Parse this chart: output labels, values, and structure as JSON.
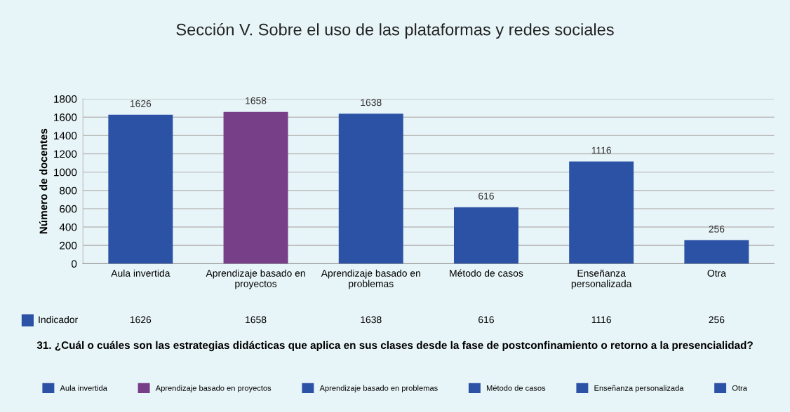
{
  "chart_data": {
    "type": "bar",
    "title": "Sección V. Sobre el uso de las plataformas y redes sociales",
    "ylabel": "Número de docentes",
    "categories": [
      "Aula invertida",
      "Aprendizaje basado en proyectos",
      "Aprendizaje basado en problemas",
      "Método de casos",
      "Enseñanza personalizada",
      "Otra"
    ],
    "series": [
      {
        "name": "Indicador",
        "color": "#2b52a5",
        "colors": [
          "#2b52a5",
          "#763f87",
          "#2b52a5",
          "#2b52a5",
          "#2b52a5",
          "#2b52a5"
        ],
        "values": [
          1626,
          1658,
          1638,
          616,
          1116,
          256
        ],
        "value_labels": [
          "1626",
          "1658",
          "1638",
          "616",
          "1116",
          "256"
        ]
      }
    ],
    "ylim": [
      0,
      1800
    ],
    "yticks": [
      0,
      200,
      400,
      600,
      800,
      1000,
      1200,
      1400,
      1600,
      1800
    ],
    "grid": "y",
    "data_labels": true,
    "legend": "bottom",
    "annotations": [
      "1626",
      "1658",
      "1638",
      "616",
      "1116",
      "256",
      "31. ¿Cuál o cuáles son las estrategias didácticas que aplica en sus clases desde la fase de postconfinamiento o retorno a la presencialidad?"
    ]
  }
}
